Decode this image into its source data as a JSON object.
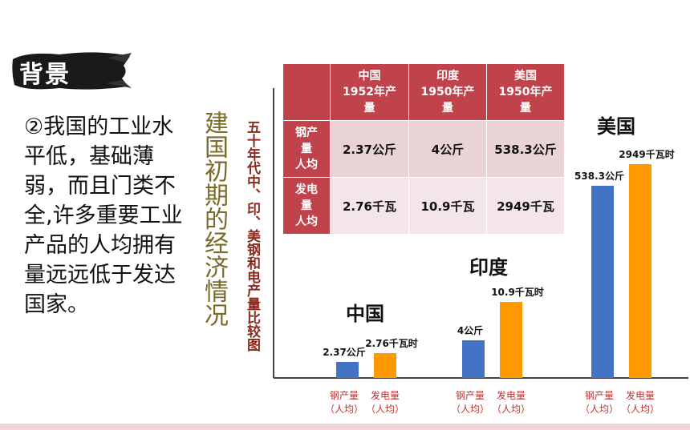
{
  "header": {
    "badge": "背景"
  },
  "body_text": "②我国的工业水平低，基础薄弱，而且门类不全,许多重要工业产品的人均拥有量远远低于发达国家。",
  "vertical_title": "建国初期的经济情况",
  "side_label": "五十年代中、印、美钢和电产量比较图",
  "table": {
    "headers": [
      "",
      "中国\n1952年产\n量",
      "印度\n1950年产\n量",
      "美国\n1950年产\n量"
    ],
    "rows": [
      {
        "label": "钢产\n量\n人均",
        "values": [
          "2.37公斤",
          "4公斤",
          "538.3公斤"
        ]
      },
      {
        "label": "发电\n量\n人均",
        "values": [
          "2.76千瓦",
          "10.9千瓦",
          "2949千瓦"
        ]
      }
    ]
  },
  "chart_data": {
    "type": "bar",
    "categories": [
      "中国",
      "印度",
      "美国"
    ],
    "series": [
      {
        "name": "钢产量（人均）",
        "values": [
          2.37,
          4,
          538.3
        ],
        "labels": [
          "2.37公斤",
          "4公斤",
          "538.3公斤"
        ],
        "color": "#4472c4"
      },
      {
        "name": "发电量（人均）",
        "values": [
          2.76,
          10.9,
          2949
        ],
        "labels": [
          "2.76千瓦时",
          "10.9千瓦时",
          "2949千瓦时"
        ],
        "color": "#ff9900"
      }
    ],
    "axis_labels": [
      "钢产量\n（人均）",
      "发电量\n（人均）"
    ],
    "scale": "illustrative (not proportional)"
  }
}
